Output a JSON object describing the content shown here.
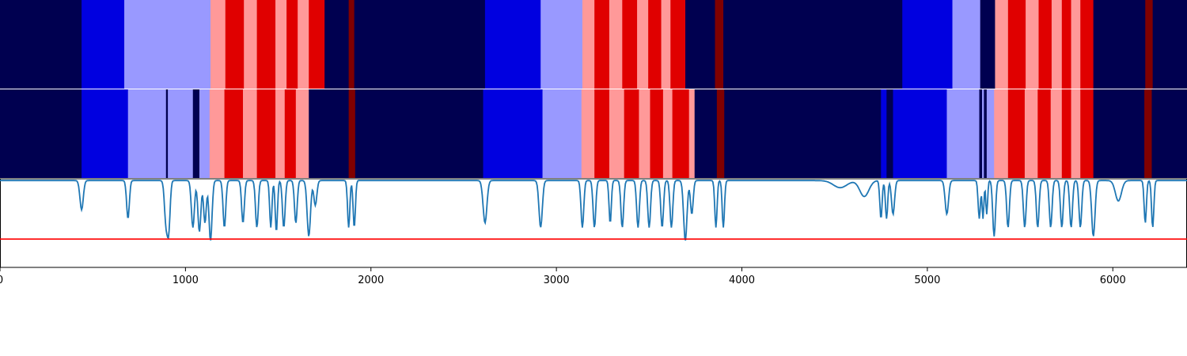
{
  "chart_data": {
    "type": "heatmap",
    "x_range": [
      0,
      6400
    ],
    "x_ticks": [
      0,
      1000,
      2000,
      3000,
      4000,
      5000,
      6000
    ],
    "x_tick_labels": [
      "0",
      "1000",
      "2000",
      "3000",
      "4000",
      "5000",
      "6000"
    ],
    "palette": {
      "0": "#000050",
      "1": "#0000e0",
      "2": "#9999ff",
      "3": "#ff9999",
      "4": "#e00000",
      "5": "#800000"
    },
    "rows": [
      {
        "segments": [
          [
            0,
            440,
            0
          ],
          [
            440,
            670,
            1
          ],
          [
            670,
            1135,
            2
          ],
          [
            1135,
            1215,
            3
          ],
          [
            1215,
            1315,
            4
          ],
          [
            1315,
            1385,
            3
          ],
          [
            1385,
            1485,
            4
          ],
          [
            1485,
            1545,
            3
          ],
          [
            1545,
            1605,
            4
          ],
          [
            1605,
            1665,
            3
          ],
          [
            1665,
            1750,
            4
          ],
          [
            1750,
            1880,
            0
          ],
          [
            1880,
            1910,
            5
          ],
          [
            1910,
            2615,
            0
          ],
          [
            2615,
            2915,
            1
          ],
          [
            2915,
            3140,
            2
          ],
          [
            3140,
            3205,
            3
          ],
          [
            3205,
            3285,
            4
          ],
          [
            3285,
            3355,
            3
          ],
          [
            3355,
            3435,
            4
          ],
          [
            3435,
            3495,
            3
          ],
          [
            3495,
            3565,
            4
          ],
          [
            3565,
            3615,
            3
          ],
          [
            3615,
            3695,
            4
          ],
          [
            3695,
            3855,
            0
          ],
          [
            3855,
            3900,
            5
          ],
          [
            3900,
            4865,
            0
          ],
          [
            4865,
            5135,
            1
          ],
          [
            5135,
            5285,
            2
          ],
          [
            5285,
            5365,
            0
          ],
          [
            5365,
            5435,
            3
          ],
          [
            5435,
            5530,
            4
          ],
          [
            5530,
            5600,
            3
          ],
          [
            5600,
            5670,
            4
          ],
          [
            5670,
            5725,
            3
          ],
          [
            5725,
            5775,
            4
          ],
          [
            5775,
            5825,
            3
          ],
          [
            5825,
            5895,
            4
          ],
          [
            5895,
            6175,
            0
          ],
          [
            6175,
            6215,
            5
          ],
          [
            6215,
            6400,
            0
          ]
        ]
      },
      {
        "segments": [
          [
            0,
            440,
            0
          ],
          [
            440,
            690,
            1
          ],
          [
            690,
            895,
            2
          ],
          [
            895,
            905,
            0
          ],
          [
            905,
            1040,
            2
          ],
          [
            1040,
            1075,
            0
          ],
          [
            1075,
            1130,
            2
          ],
          [
            1130,
            1210,
            3
          ],
          [
            1210,
            1310,
            4
          ],
          [
            1310,
            1385,
            3
          ],
          [
            1385,
            1485,
            4
          ],
          [
            1485,
            1535,
            3
          ],
          [
            1535,
            1595,
            4
          ],
          [
            1595,
            1665,
            3
          ],
          [
            1665,
            1880,
            0
          ],
          [
            1880,
            1915,
            5
          ],
          [
            1915,
            2605,
            0
          ],
          [
            2605,
            2925,
            1
          ],
          [
            2925,
            3135,
            2
          ],
          [
            3135,
            3205,
            3
          ],
          [
            3205,
            3285,
            4
          ],
          [
            3285,
            3365,
            3
          ],
          [
            3365,
            3445,
            4
          ],
          [
            3445,
            3505,
            3
          ],
          [
            3505,
            3575,
            4
          ],
          [
            3575,
            3625,
            3
          ],
          [
            3625,
            3715,
            4
          ],
          [
            3715,
            3745,
            3
          ],
          [
            3745,
            3865,
            0
          ],
          [
            3865,
            3905,
            5
          ],
          [
            3905,
            4750,
            0
          ],
          [
            4750,
            4780,
            1
          ],
          [
            4780,
            4815,
            0
          ],
          [
            4815,
            5105,
            1
          ],
          [
            5105,
            5280,
            2
          ],
          [
            5280,
            5295,
            0
          ],
          [
            5295,
            5305,
            2
          ],
          [
            5305,
            5320,
            0
          ],
          [
            5320,
            5360,
            2
          ],
          [
            5360,
            5435,
            3
          ],
          [
            5435,
            5525,
            4
          ],
          [
            5525,
            5595,
            3
          ],
          [
            5595,
            5665,
            4
          ],
          [
            5665,
            5725,
            3
          ],
          [
            5725,
            5775,
            4
          ],
          [
            5775,
            5825,
            3
          ],
          [
            5825,
            5895,
            4
          ],
          [
            5895,
            6170,
            0
          ],
          [
            6170,
            6210,
            5
          ],
          [
            6210,
            6400,
            0
          ]
        ]
      }
    ],
    "line_series": {
      "color": "#1f77b4",
      "y_range": [
        0,
        1
      ],
      "baseline": 0.98,
      "dips": [
        [
          440,
          0.65,
          22
        ],
        [
          690,
          0.55,
          18
        ],
        [
          895,
          0.5,
          20
        ],
        [
          910,
          0.45,
          18
        ],
        [
          1040,
          0.45,
          20
        ],
        [
          1075,
          0.4,
          20
        ],
        [
          1105,
          0.5,
          18
        ],
        [
          1135,
          0.3,
          20
        ],
        [
          1210,
          0.45,
          18
        ],
        [
          1310,
          0.5,
          18
        ],
        [
          1385,
          0.45,
          18
        ],
        [
          1460,
          0.45,
          15
        ],
        [
          1490,
          0.4,
          15
        ],
        [
          1530,
          0.45,
          18
        ],
        [
          1595,
          0.5,
          18
        ],
        [
          1665,
          0.35,
          22
        ],
        [
          1700,
          0.7,
          20
        ],
        [
          1880,
          0.45,
          15
        ],
        [
          1910,
          0.45,
          15
        ],
        [
          2615,
          0.5,
          25
        ],
        [
          2915,
          0.45,
          22
        ],
        [
          3140,
          0.45,
          18
        ],
        [
          3205,
          0.45,
          18
        ],
        [
          3290,
          0.5,
          15
        ],
        [
          3355,
          0.45,
          18
        ],
        [
          3440,
          0.45,
          18
        ],
        [
          3500,
          0.45,
          18
        ],
        [
          3570,
          0.45,
          18
        ],
        [
          3620,
          0.45,
          18
        ],
        [
          3695,
          0.3,
          22
        ],
        [
          3730,
          0.6,
          18
        ],
        [
          3860,
          0.45,
          15
        ],
        [
          3900,
          0.45,
          15
        ],
        [
          4530,
          0.9,
          90
        ],
        [
          4660,
          0.8,
          60
        ],
        [
          4750,
          0.55,
          15
        ],
        [
          4780,
          0.55,
          15
        ],
        [
          4815,
          0.6,
          20
        ],
        [
          5105,
          0.6,
          22
        ],
        [
          5280,
          0.55,
          15
        ],
        [
          5300,
          0.55,
          12
        ],
        [
          5320,
          0.6,
          12
        ],
        [
          5360,
          0.35,
          18
        ],
        [
          5435,
          0.45,
          18
        ],
        [
          5525,
          0.45,
          18
        ],
        [
          5595,
          0.45,
          18
        ],
        [
          5665,
          0.45,
          18
        ],
        [
          5725,
          0.45,
          18
        ],
        [
          5775,
          0.45,
          18
        ],
        [
          5825,
          0.45,
          18
        ],
        [
          5895,
          0.35,
          22
        ],
        [
          6030,
          0.75,
          40
        ],
        [
          6175,
          0.5,
          15
        ],
        [
          6215,
          0.45,
          15
        ]
      ],
      "threshold": 0.32,
      "threshold_color": "#ff0000"
    }
  }
}
